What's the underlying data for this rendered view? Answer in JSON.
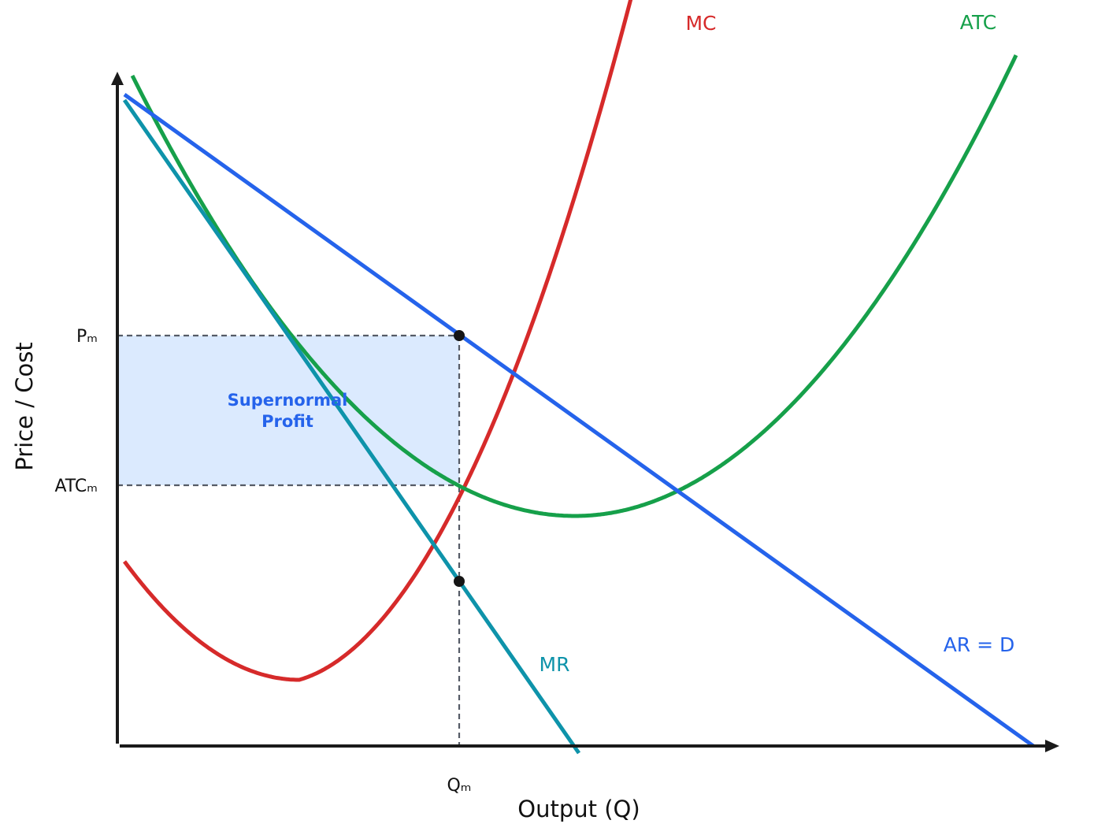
{
  "axes": {
    "y_label": "Price / Cost",
    "x_label": "Output (Q)"
  },
  "ticks": {
    "price": "Pₘ",
    "atc": "ATCₘ",
    "quantity": "Qₘ"
  },
  "region": {
    "line1": "Supernormal",
    "line2": "Profit",
    "color": "#dbeafe",
    "text_color": "#2563eb"
  },
  "curves": {
    "mc": {
      "label": "MC",
      "color": "#d62a2a"
    },
    "atc": {
      "label": "ATC",
      "color": "#16a04a"
    },
    "ar": {
      "label": "AR = D",
      "color": "#2563eb"
    },
    "mr": {
      "label": "MR",
      "color": "#0e93aa"
    }
  },
  "points": {
    "price_point": "Pₘ at Qₘ on AR = D",
    "mc_mr_point": "MC = MR at Qₘ"
  }
}
